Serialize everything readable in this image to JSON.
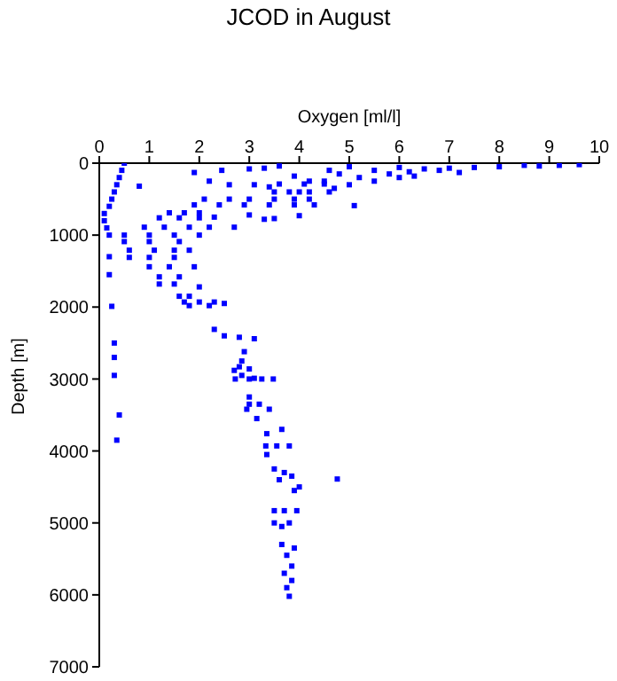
{
  "chart_data": {
    "type": "scatter",
    "title": "JCOD in August",
    "xlabel": "Oxygen [ml/l]",
    "ylabel": "Depth [m]",
    "xlim": [
      0,
      10
    ],
    "xticks": [
      0,
      1,
      2,
      3,
      4,
      5,
      6,
      7,
      8,
      9,
      10
    ],
    "ylim": [
      7000,
      0
    ],
    "yticks": [
      0,
      1000,
      2000,
      3000,
      4000,
      5000,
      6000,
      7000
    ],
    "grid": false,
    "legend": false,
    "marker": "square",
    "series": [
      {
        "color": "#0000ff",
        "x": [
          9.6,
          9.2,
          8.8,
          8.5,
          8.0,
          7.5,
          7.0,
          6.8,
          6.5,
          6.2,
          6.0,
          5.8,
          5.5,
          5.2,
          5.0,
          4.8,
          4.6,
          4.5,
          5.0,
          4.7,
          5.5,
          6.0,
          4.6,
          7.2,
          6.3,
          5.1,
          1.9,
          2.45,
          3.0,
          3.3,
          3.6,
          2.2,
          2.6,
          3.1,
          3.4,
          3.9,
          4.2,
          4.0,
          3.6,
          4.1,
          4.5,
          3.5,
          3.8,
          4.2,
          2.1,
          2.6,
          3.0,
          3.5,
          3.9,
          4.2,
          1.9,
          2.4,
          2.9,
          3.4,
          3.9,
          4.3,
          1.4,
          1.7,
          2.0,
          2.3,
          3.0,
          3.5,
          4.0,
          3.3,
          1.2,
          1.6,
          2.0,
          0.9,
          1.3,
          1.8,
          2.2,
          2.7,
          0.5,
          1.0,
          1.5,
          2.0,
          0.5,
          1.0,
          1.6,
          0.6,
          1.1,
          1.5,
          1.8,
          0.6,
          1.0,
          1.5,
          1.0,
          1.4,
          1.9,
          1.2,
          1.6,
          1.2,
          1.5,
          2.0,
          1.6,
          1.8,
          1.7,
          2.0,
          2.3,
          2.5,
          1.8,
          2.2,
          0.5,
          0.45,
          0.4,
          0.35,
          0.3,
          0.25,
          0.2,
          0.1,
          0.1,
          0.15,
          0.2,
          0.8,
          0.2,
          0.2,
          0.25,
          0.3,
          0.3,
          0.3,
          0.4,
          0.35,
          2.3,
          2.5,
          2.8,
          3.1,
          2.9,
          2.85,
          2.8,
          3.0,
          2.7,
          2.85,
          3.1,
          2.72,
          3.0,
          3.25,
          3.48,
          3.0,
          3.0,
          3.2,
          2.95,
          3.4,
          3.15,
          3.35,
          3.65,
          3.33,
          3.55,
          3.8,
          3.35,
          3.5,
          3.7,
          3.85,
          3.6,
          4.76,
          4.0,
          3.9,
          3.5,
          3.7,
          3.95,
          3.5,
          3.65,
          3.8,
          3.65,
          3.9,
          3.75,
          3.85,
          3.7,
          3.85,
          3.75,
          3.8
        ],
        "values": [
          20,
          30,
          40,
          30,
          50,
          60,
          70,
          100,
          80,
          120,
          60,
          150,
          100,
          200,
          50,
          150,
          100,
          250,
          300,
          350,
          250,
          200,
          400,
          130,
          180,
          590,
          130,
          100,
          80,
          70,
          40,
          250,
          300,
          300,
          330,
          180,
          250,
          400,
          290,
          290,
          290,
          400,
          400,
          400,
          500,
          500,
          500,
          500,
          500,
          500,
          580,
          580,
          580,
          580,
          580,
          580,
          690,
          690,
          690,
          750,
          720,
          770,
          730,
          780,
          760,
          760,
          760,
          890,
          890,
          890,
          890,
          890,
          1000,
          1000,
          1000,
          1000,
          1090,
          1090,
          1090,
          1210,
          1210,
          1210,
          1210,
          1310,
          1310,
          1310,
          1440,
          1440,
          1440,
          1580,
          1580,
          1680,
          1680,
          1720,
          1850,
          1850,
          1930,
          1930,
          1930,
          1950,
          1980,
          1980,
          0,
          100,
          200,
          300,
          400,
          500,
          600,
          700,
          800,
          900,
          1000,
          320,
          1300,
          1550,
          1990,
          2500,
          2700,
          2950,
          3500,
          3850,
          2310,
          2400,
          2420,
          2440,
          2620,
          2750,
          2830,
          2860,
          2880,
          2950,
          2990,
          3000,
          3000,
          3000,
          3000,
          3250,
          3350,
          3350,
          3420,
          3420,
          3550,
          3760,
          3700,
          3930,
          3930,
          3930,
          4050,
          4250,
          4300,
          4350,
          4400,
          4390,
          4500,
          4550,
          4830,
          4830,
          4830,
          5000,
          5050,
          5000,
          5300,
          5350,
          5450,
          5600,
          5700,
          5800,
          5900,
          6020
        ]
      }
    ]
  }
}
